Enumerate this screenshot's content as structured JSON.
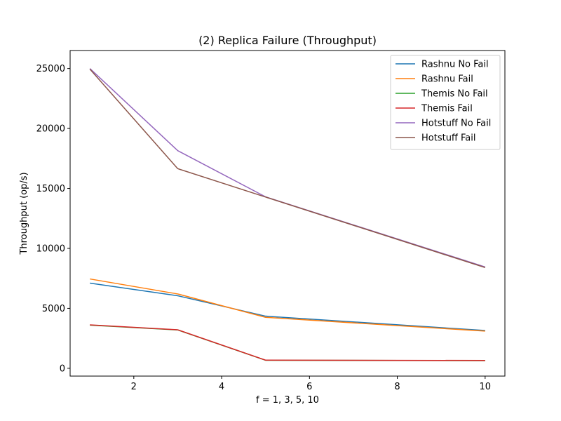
{
  "chart_data": {
    "type": "line",
    "title": "(2) Replica Failure (Throughput)",
    "xlabel": "f = 1, 3, 5, 10",
    "ylabel": "Throughput (op/s)",
    "x": [
      1,
      3,
      5,
      10
    ],
    "xlim": [
      0.55,
      10.45
    ],
    "ylim": [
      -650,
      26500
    ],
    "xticks": [
      2,
      4,
      6,
      8,
      10
    ],
    "yticks": [
      0,
      5000,
      10000,
      15000,
      20000,
      25000
    ],
    "grid": false,
    "legend_position": "top-right",
    "series": [
      {
        "name": "Rashnu No Fail",
        "color": "#1f77b4",
        "values": [
          7100,
          6050,
          4350,
          3150
        ]
      },
      {
        "name": "Rashnu Fail",
        "color": "#ff7f0e",
        "values": [
          7450,
          6200,
          4250,
          3100
        ]
      },
      {
        "name": "Themis No Fail",
        "color": "#2ca02c",
        "values": [
          3600,
          3200,
          670,
          640
        ]
      },
      {
        "name": "Themis Fail",
        "color": "#d62728",
        "values": [
          3620,
          3210,
          680,
          650
        ]
      },
      {
        "name": "Hotstuff No Fail",
        "color": "#9467bd",
        "values": [
          25000,
          18150,
          14300,
          8450
        ]
      },
      {
        "name": "Hotstuff Fail",
        "color": "#8c564b",
        "values": [
          24950,
          16650,
          14280,
          8400
        ]
      }
    ]
  }
}
